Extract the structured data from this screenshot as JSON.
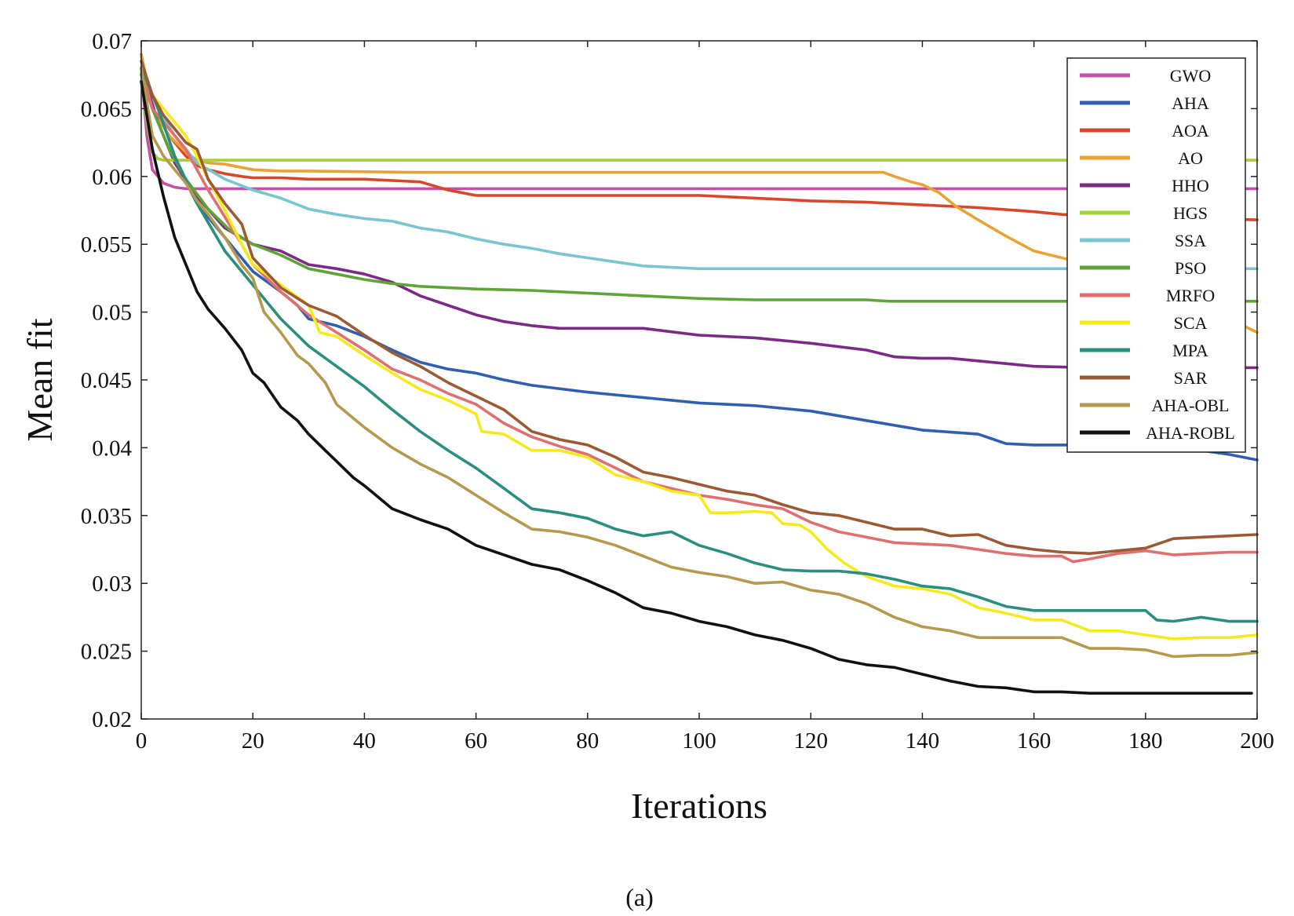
{
  "chart_data": {
    "type": "line",
    "title": "",
    "xlabel": "Iterations",
    "ylabel": "Mean fit",
    "caption": "(a)",
    "xlim": [
      0,
      200
    ],
    "ylim": [
      0.02,
      0.07
    ],
    "xticks": [
      0,
      20,
      40,
      60,
      80,
      100,
      120,
      140,
      160,
      180,
      200
    ],
    "xtick_labels": [
      "0",
      "20",
      "40",
      "60",
      "80",
      "100",
      "120",
      "140",
      "160",
      "180",
      "200"
    ],
    "yticks": [
      0.02,
      0.025,
      0.03,
      0.035,
      0.04,
      0.045,
      0.05,
      0.055,
      0.06,
      0.065,
      0.07
    ],
    "ytick_labels": [
      "0.02",
      "0.025",
      "0.03",
      "0.035",
      "0.04",
      "0.045",
      "0.05",
      "0.055",
      "0.06",
      "0.065",
      "0.07"
    ],
    "grid": false,
    "legend_position": "top-right",
    "series": [
      {
        "name": "GWO",
        "color": "#c44fa6",
        "x": [
          0,
          1,
          2,
          4,
          6,
          8,
          200
        ],
        "y": [
          0.068,
          0.063,
          0.0605,
          0.0595,
          0.0592,
          0.0591,
          0.0591
        ]
      },
      {
        "name": "AHA",
        "color": "#2f5fae",
        "x": [
          0,
          2,
          5,
          10,
          15,
          20,
          25,
          28,
          30,
          35,
          40,
          45,
          50,
          55,
          60,
          65,
          70,
          80,
          90,
          100,
          110,
          120,
          130,
          140,
          150,
          155,
          160,
          170,
          180,
          190,
          195,
          200
        ],
        "y": [
          0.0675,
          0.065,
          0.062,
          0.058,
          0.0555,
          0.053,
          0.0515,
          0.0505,
          0.0495,
          0.049,
          0.0482,
          0.0472,
          0.0463,
          0.0458,
          0.0455,
          0.045,
          0.0446,
          0.0441,
          0.0437,
          0.0433,
          0.0431,
          0.0427,
          0.042,
          0.0413,
          0.041,
          0.0403,
          0.0402,
          0.0402,
          0.0401,
          0.0398,
          0.0395,
          0.0391
        ]
      },
      {
        "name": "AOA",
        "color": "#d9472b",
        "x": [
          0,
          2,
          5,
          8,
          10,
          12,
          15,
          18,
          20,
          25,
          30,
          40,
          50,
          55,
          60,
          80,
          100,
          110,
          120,
          130,
          140,
          150,
          160,
          165,
          170,
          175,
          180,
          190,
          200
        ],
        "y": [
          0.069,
          0.065,
          0.063,
          0.0615,
          0.0608,
          0.0605,
          0.0602,
          0.06,
          0.0599,
          0.0599,
          0.0598,
          0.0598,
          0.0596,
          0.059,
          0.0586,
          0.0586,
          0.0586,
          0.0584,
          0.0582,
          0.0581,
          0.0579,
          0.0577,
          0.0574,
          0.0572,
          0.0571,
          0.057,
          0.0569,
          0.0569,
          0.0568
        ]
      },
      {
        "name": "AO",
        "color": "#e8a332",
        "x": [
          0,
          2,
          5,
          8,
          10,
          12,
          15,
          20,
          25,
          30,
          50,
          80,
          100,
          120,
          133,
          135,
          138,
          140,
          143,
          146,
          150,
          155,
          160,
          165,
          170,
          175,
          180,
          185,
          190,
          195,
          200
        ],
        "y": [
          0.069,
          0.065,
          0.063,
          0.0618,
          0.0612,
          0.061,
          0.0609,
          0.0605,
          0.0604,
          0.0604,
          0.0603,
          0.0603,
          0.0603,
          0.0603,
          0.0603,
          0.06,
          0.0596,
          0.0594,
          0.0588,
          0.0578,
          0.0568,
          0.0556,
          0.0545,
          0.054,
          0.0535,
          0.0528,
          0.052,
          0.051,
          0.05,
          0.0495,
          0.0485
        ]
      },
      {
        "name": "HHO",
        "color": "#7b2a86",
        "x": [
          0,
          3,
          6,
          10,
          15,
          20,
          25,
          30,
          35,
          40,
          45,
          50,
          55,
          60,
          65,
          70,
          75,
          80,
          90,
          100,
          110,
          120,
          130,
          135,
          140,
          145,
          150,
          160,
          170,
          180,
          190,
          200
        ],
        "y": [
          0.068,
          0.064,
          0.061,
          0.0585,
          0.0562,
          0.055,
          0.0545,
          0.0535,
          0.0532,
          0.0528,
          0.0522,
          0.0512,
          0.0505,
          0.0498,
          0.0493,
          0.049,
          0.0488,
          0.0488,
          0.0488,
          0.0483,
          0.0481,
          0.0477,
          0.0472,
          0.0467,
          0.0466,
          0.0466,
          0.0464,
          0.046,
          0.0459,
          0.0459,
          0.0459,
          0.0459
        ]
      },
      {
        "name": "HGS",
        "color": "#a6cf3a",
        "x": [
          0,
          1,
          2,
          3,
          4,
          200
        ],
        "y": [
          0.068,
          0.064,
          0.0618,
          0.0613,
          0.0612,
          0.0612
        ]
      },
      {
        "name": "SSA",
        "color": "#79c6d0",
        "x": [
          0,
          3,
          6,
          10,
          15,
          20,
          25,
          30,
          35,
          40,
          45,
          50,
          55,
          60,
          65,
          70,
          75,
          80,
          85,
          90,
          95,
          100,
          110,
          120,
          140,
          160,
          180,
          200
        ],
        "y": [
          0.068,
          0.065,
          0.063,
          0.061,
          0.0598,
          0.059,
          0.0584,
          0.0576,
          0.0572,
          0.0569,
          0.0567,
          0.0562,
          0.0559,
          0.0554,
          0.055,
          0.0547,
          0.0543,
          0.054,
          0.0537,
          0.0534,
          0.0533,
          0.0532,
          0.0532,
          0.0532,
          0.0532,
          0.0532,
          0.0532,
          0.0532
        ]
      },
      {
        "name": "PSO",
        "color": "#5ea437",
        "x": [
          0,
          2,
          5,
          8,
          12,
          16,
          20,
          25,
          30,
          35,
          40,
          45,
          50,
          60,
          70,
          80,
          90,
          100,
          110,
          120,
          130,
          134,
          140,
          150,
          160,
          180,
          200
        ],
        "y": [
          0.0675,
          0.065,
          0.062,
          0.0598,
          0.0576,
          0.056,
          0.055,
          0.0542,
          0.0532,
          0.0528,
          0.0524,
          0.0521,
          0.0519,
          0.0517,
          0.0516,
          0.0514,
          0.0512,
          0.051,
          0.0509,
          0.0509,
          0.0509,
          0.0508,
          0.0508,
          0.0508,
          0.0508,
          0.0508,
          0.0508
        ]
      },
      {
        "name": "MRFO",
        "color": "#e07070",
        "x": [
          0,
          2,
          5,
          8,
          10,
          12,
          15,
          18,
          20,
          25,
          30,
          35,
          40,
          45,
          50,
          55,
          60,
          65,
          70,
          75,
          80,
          85,
          90,
          95,
          100,
          105,
          110,
          115,
          120,
          125,
          130,
          135,
          140,
          145,
          150,
          155,
          160,
          165,
          167,
          170,
          175,
          180,
          185,
          190,
          195,
          200
        ],
        "y": [
          0.068,
          0.065,
          0.0635,
          0.062,
          0.0605,
          0.059,
          0.057,
          0.055,
          0.0535,
          0.0515,
          0.0498,
          0.0485,
          0.0472,
          0.0458,
          0.045,
          0.044,
          0.0432,
          0.0418,
          0.0408,
          0.0401,
          0.0395,
          0.0385,
          0.0375,
          0.037,
          0.0365,
          0.0362,
          0.0358,
          0.0355,
          0.0345,
          0.0338,
          0.0334,
          0.033,
          0.0329,
          0.0328,
          0.0325,
          0.0322,
          0.032,
          0.032,
          0.0316,
          0.0318,
          0.0322,
          0.0324,
          0.0321,
          0.0322,
          0.0323,
          0.0323
        ]
      },
      {
        "name": "SCA",
        "color": "#f5ea1e",
        "x": [
          0,
          2,
          4,
          6,
          8,
          10,
          12,
          15,
          18,
          20,
          25,
          30,
          32,
          35,
          40,
          45,
          50,
          55,
          60,
          61,
          65,
          70,
          75,
          80,
          85,
          90,
          95,
          100,
          102,
          105,
          110,
          113,
          115,
          118,
          120,
          123,
          126,
          130,
          135,
          140,
          145,
          150,
          155,
          160,
          165,
          170,
          175,
          180,
          185,
          190,
          195,
          200
        ],
        "y": [
          0.068,
          0.066,
          0.065,
          0.064,
          0.063,
          0.0615,
          0.0598,
          0.0575,
          0.055,
          0.0535,
          0.052,
          0.0505,
          0.0485,
          0.0482,
          0.0468,
          0.0455,
          0.0443,
          0.0435,
          0.0425,
          0.0412,
          0.041,
          0.0398,
          0.0398,
          0.0393,
          0.038,
          0.0375,
          0.0368,
          0.0365,
          0.0352,
          0.0352,
          0.0353,
          0.0352,
          0.0344,
          0.0343,
          0.0338,
          0.0325,
          0.0315,
          0.0305,
          0.0298,
          0.0296,
          0.0292,
          0.0282,
          0.0278,
          0.0273,
          0.0273,
          0.0265,
          0.0265,
          0.0262,
          0.0259,
          0.026,
          0.026,
          0.0262
        ]
      },
      {
        "name": "MPA",
        "color": "#2b8f7f",
        "x": [
          0,
          3,
          6,
          10,
          15,
          20,
          25,
          30,
          35,
          40,
          45,
          50,
          55,
          60,
          65,
          70,
          75,
          80,
          85,
          90,
          95,
          100,
          105,
          110,
          115,
          120,
          125,
          130,
          135,
          140,
          145,
          150,
          155,
          160,
          165,
          170,
          175,
          180,
          182,
          185,
          190,
          195,
          200
        ],
        "y": [
          0.068,
          0.065,
          0.0615,
          0.058,
          0.0545,
          0.052,
          0.0495,
          0.0475,
          0.046,
          0.0445,
          0.0428,
          0.0412,
          0.0398,
          0.0385,
          0.037,
          0.0355,
          0.0352,
          0.0348,
          0.034,
          0.0335,
          0.0338,
          0.0328,
          0.0322,
          0.0315,
          0.031,
          0.0309,
          0.0309,
          0.0307,
          0.0303,
          0.0298,
          0.0296,
          0.029,
          0.0283,
          0.028,
          0.028,
          0.028,
          0.028,
          0.028,
          0.0273,
          0.0272,
          0.0275,
          0.0272,
          0.0272
        ]
      },
      {
        "name": "SAR",
        "color": "#9c5a34",
        "x": [
          0,
          2,
          4,
          6,
          8,
          10,
          12,
          15,
          18,
          20,
          25,
          30,
          35,
          40,
          45,
          50,
          55,
          60,
          65,
          70,
          75,
          80,
          85,
          90,
          95,
          100,
          105,
          110,
          115,
          120,
          125,
          130,
          135,
          140,
          145,
          150,
          155,
          160,
          165,
          170,
          175,
          180,
          185,
          190,
          195,
          200
        ],
        "y": [
          0.0685,
          0.066,
          0.0645,
          0.0635,
          0.0625,
          0.062,
          0.0598,
          0.058,
          0.0565,
          0.054,
          0.0518,
          0.0505,
          0.0497,
          0.0483,
          0.047,
          0.046,
          0.0448,
          0.0438,
          0.0428,
          0.0412,
          0.0406,
          0.0402,
          0.0393,
          0.0382,
          0.0378,
          0.0373,
          0.0368,
          0.0365,
          0.0358,
          0.0352,
          0.035,
          0.0345,
          0.034,
          0.034,
          0.0335,
          0.0336,
          0.0328,
          0.0325,
          0.0323,
          0.0322,
          0.0324,
          0.0326,
          0.0333,
          0.0334,
          0.0335,
          0.0336
        ]
      },
      {
        "name": "AHA-OBL",
        "color": "#b59a4e",
        "x": [
          0,
          2,
          4,
          6,
          8,
          10,
          12,
          15,
          18,
          20,
          22,
          25,
          28,
          30,
          33,
          35,
          40,
          45,
          50,
          55,
          60,
          65,
          70,
          75,
          80,
          85,
          90,
          95,
          100,
          105,
          110,
          115,
          120,
          125,
          130,
          135,
          140,
          145,
          150,
          155,
          160,
          165,
          170,
          175,
          180,
          185,
          190,
          195,
          200
        ],
        "y": [
          0.068,
          0.063,
          0.0615,
          0.0605,
          0.0595,
          0.0582,
          0.0572,
          0.0555,
          0.0535,
          0.0525,
          0.05,
          0.0485,
          0.0468,
          0.0462,
          0.0448,
          0.0432,
          0.0415,
          0.04,
          0.0388,
          0.0378,
          0.0365,
          0.0352,
          0.034,
          0.0338,
          0.0334,
          0.0328,
          0.032,
          0.0312,
          0.0308,
          0.0305,
          0.03,
          0.0301,
          0.0295,
          0.0292,
          0.0285,
          0.0275,
          0.0268,
          0.0265,
          0.026,
          0.026,
          0.026,
          0.026,
          0.0252,
          0.0252,
          0.0251,
          0.0246,
          0.0247,
          0.0247,
          0.0249
        ]
      },
      {
        "name": "AHA-ROBL",
        "color": "#111111",
        "x": [
          0,
          2,
          4,
          6,
          8,
          10,
          12,
          15,
          18,
          20,
          22,
          25,
          28,
          30,
          33,
          35,
          38,
          40,
          45,
          50,
          55,
          60,
          65,
          70,
          75,
          80,
          85,
          90,
          95,
          100,
          105,
          110,
          115,
          120,
          125,
          130,
          135,
          140,
          145,
          150,
          155,
          160,
          165,
          170,
          180,
          190,
          199
        ],
        "y": [
          0.067,
          0.062,
          0.0585,
          0.0555,
          0.0535,
          0.0515,
          0.0502,
          0.0488,
          0.0472,
          0.0455,
          0.0448,
          0.043,
          0.042,
          0.041,
          0.0398,
          0.039,
          0.0378,
          0.0372,
          0.0355,
          0.0347,
          0.034,
          0.0328,
          0.0321,
          0.0314,
          0.031,
          0.0302,
          0.0293,
          0.0282,
          0.0278,
          0.0272,
          0.0268,
          0.0262,
          0.0258,
          0.0252,
          0.0244,
          0.024,
          0.0238,
          0.0233,
          0.0228,
          0.0224,
          0.0223,
          0.022,
          0.022,
          0.0219,
          0.0219,
          0.0219,
          0.0219
        ]
      }
    ]
  }
}
